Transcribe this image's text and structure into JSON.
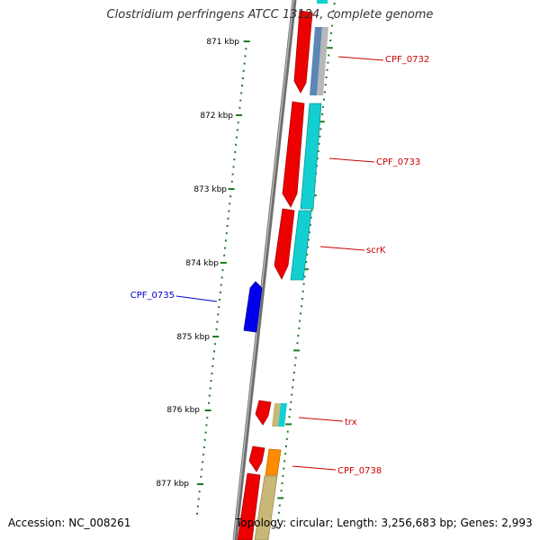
{
  "title": "Clostridium perfringens ATCC 13124, complete genome",
  "footer": {
    "accession": "Accession: NC_008261",
    "topology": "Topology: circular; Length: 3,256,683 bp; Genes: 2,993"
  },
  "colors": {
    "backbone": "#8c8c8c",
    "tick": "#1f7a1f",
    "forward_label": "#cc0000",
    "reverse_label": "#0000cc",
    "gene_red": "#ee0000",
    "gene_cyan": "#14cfcf",
    "gene_blue": "#0000ee",
    "gene_orange": "#ff8c00",
    "gene_khaki": "#c8b878",
    "gene_steel": "#5b86b5",
    "gene_grey": "#b0b0b0"
  },
  "scale": {
    "tick_labels": [
      "871 kbp",
      "872 kbp",
      "873 kbp",
      "874 kbp",
      "875 kbp",
      "876 kbp",
      "877 kbp"
    ]
  },
  "genes": [
    {
      "name": "CPF_0732",
      "strand": "forward"
    },
    {
      "name": "CPF_0733",
      "strand": "forward"
    },
    {
      "name": "scrK",
      "strand": "forward"
    },
    {
      "name": "CPF_0735",
      "strand": "reverse"
    },
    {
      "name": "trx",
      "strand": "forward"
    },
    {
      "name": "CPF_0738",
      "strand": "forward"
    }
  ]
}
